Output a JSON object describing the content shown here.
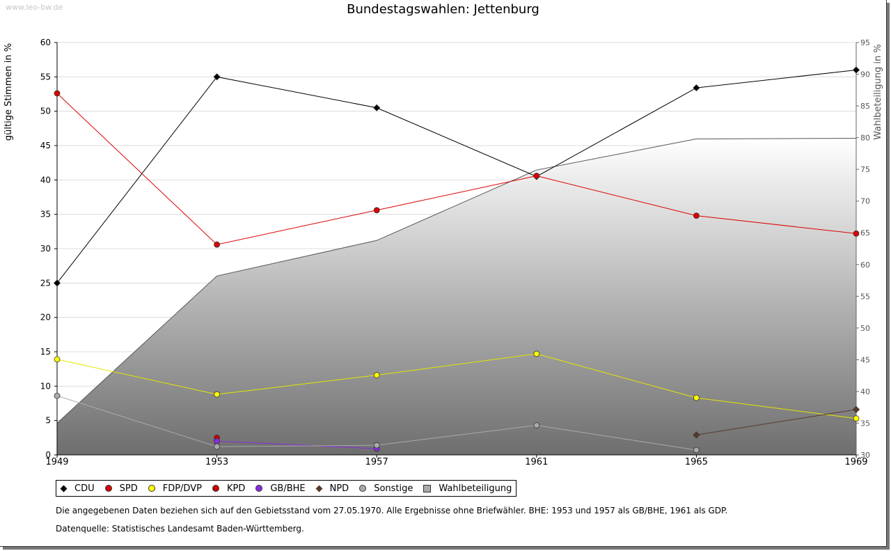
{
  "watermark": "www.leo-bw.de",
  "chart_data": {
    "type": "line",
    "title": "Bundestagswahlen: Jettenburg",
    "ylabel": "gültige Stimmen in %",
    "y2label": "Wahlbeteiligung in %",
    "ylim": [
      0,
      60
    ],
    "y2lim": [
      30,
      95
    ],
    "yticks": [
      "0",
      "5",
      "10",
      "15",
      "20",
      "25",
      "30",
      "35",
      "40",
      "45",
      "50",
      "55",
      "60"
    ],
    "y2ticks": [
      "30",
      "35",
      "40",
      "45",
      "50",
      "55",
      "60",
      "65",
      "70",
      "75",
      "80",
      "85",
      "90",
      "95"
    ],
    "x": [
      "1949",
      "1953",
      "1957",
      "1961",
      "1965",
      "1969"
    ],
    "grid": true,
    "legend_position": "bottom",
    "series": [
      {
        "name": "CDU",
        "color": "#000000",
        "marker": "diamond",
        "values": [
          25.0,
          55.0,
          50.5,
          40.5,
          53.4,
          56.0
        ]
      },
      {
        "name": "SPD",
        "color": "#dd0000",
        "marker": "circle",
        "values": [
          52.6,
          30.6,
          35.6,
          40.6,
          34.8,
          32.2
        ]
      },
      {
        "name": "FDP/DVP",
        "color": "#ffff00",
        "marker": "circle",
        "values": [
          13.9,
          8.8,
          11.6,
          14.7,
          8.3,
          5.3
        ]
      },
      {
        "name": "KPD",
        "color": "#cc0000",
        "marker": "circle",
        "values": [
          null,
          2.5,
          null,
          null,
          null,
          null
        ]
      },
      {
        "name": "GB/BHE",
        "color": "#8a2be2",
        "marker": "circle",
        "values": [
          null,
          2.0,
          0.9,
          null,
          null,
          null
        ]
      },
      {
        "name": "NPD",
        "color": "#5a3a2a",
        "marker": "diamond",
        "values": [
          null,
          null,
          null,
          null,
          2.9,
          6.6
        ]
      },
      {
        "name": "Sonstige",
        "color": "#aaaaaa",
        "marker": "circle",
        "values": [
          8.6,
          1.2,
          1.4,
          4.3,
          0.7,
          null
        ]
      }
    ],
    "area": {
      "name": "Wahlbeteiligung",
      "axis": "right",
      "values": [
        35.0,
        58.2,
        63.8,
        74.9,
        79.8,
        79.9
      ]
    }
  },
  "notes": [
    "Die angegebenen Daten beziehen sich auf den Gebietsstand vom 27.05.1970. Alle Ergebnisse ohne Briefwähler. BHE: 1953 und 1957 als GB/BHE, 1961 als GDP.",
    "Datenquelle: Statistisches Landesamt Baden-Württemberg."
  ]
}
